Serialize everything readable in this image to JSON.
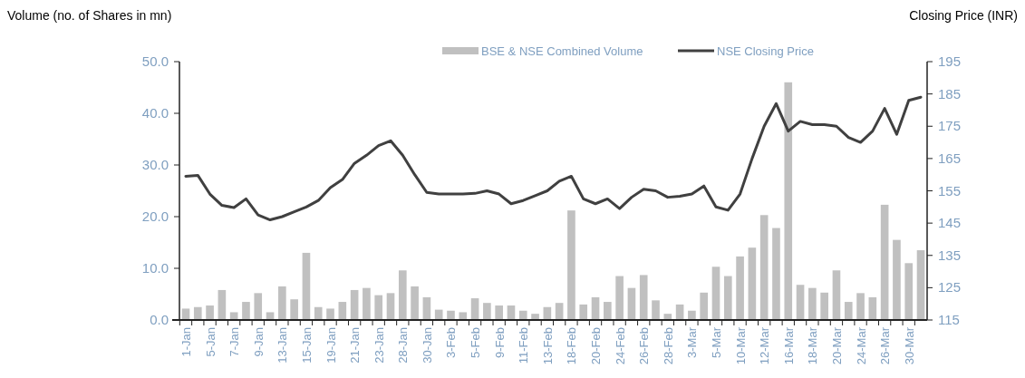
{
  "chart_data": {
    "type": "bar",
    "ylabel": "Volume (no. of Shares in mn)",
    "y2label": "Closing Price (INR)",
    "categories": [
      "1-Jan",
      null,
      "5-Jan",
      null,
      "7-Jan",
      null,
      "9-Jan",
      null,
      "13-Jan",
      null,
      "15-Jan",
      null,
      "19-Jan",
      null,
      "21-Jan",
      null,
      "23-Jan",
      null,
      "28-Jan",
      null,
      "30-Jan",
      null,
      "3-Feb",
      null,
      "5-Feb",
      null,
      "9-Feb",
      null,
      "11-Feb",
      null,
      "13-Feb",
      null,
      "18-Feb",
      null,
      "20-Feb",
      null,
      "24-Feb",
      null,
      "26-Feb",
      null,
      "28-Feb",
      null,
      "3-Mar",
      null,
      "5-Mar",
      null,
      "10-Mar",
      null,
      "12-Mar",
      null,
      "16-Mar",
      null,
      "18-Mar",
      null,
      "20-Mar",
      null,
      "24-Mar",
      null,
      "26-Mar",
      null,
      "30-Mar",
      null
    ],
    "series": [
      {
        "name": "BSE & NSE Combined Volume",
        "color": "#c0c0c0",
        "values": [
          2.2,
          2.5,
          2.8,
          5.8,
          1.5,
          3.5,
          5.2,
          1.5,
          6.5,
          4.0,
          13.0,
          2.5,
          2.2,
          3.5,
          5.8,
          6.2,
          4.8,
          5.2,
          9.6,
          6.5,
          4.4,
          2.0,
          1.8,
          1.5,
          4.2,
          3.3,
          2.8,
          2.8,
          1.8,
          1.2,
          2.5,
          3.3,
          21.2,
          3.0,
          4.4,
          3.5,
          8.5,
          6.2,
          8.7,
          3.8,
          1.2,
          3.0,
          1.8,
          5.3,
          10.3,
          8.5,
          12.3,
          14.0,
          20.3,
          17.8,
          46.0,
          6.8,
          6.2,
          5.3,
          9.6,
          3.5,
          5.2,
          4.4,
          22.3,
          15.5,
          11.0,
          13.5
        ]
      },
      {
        "name": "NSE Closing Price",
        "type": "line",
        "axis": "y2",
        "color": "#404040",
        "values": [
          159.5,
          159.8,
          154,
          150.5,
          149.8,
          152.5,
          147.5,
          146,
          147,
          148.5,
          150,
          152,
          156,
          158.5,
          163.5,
          166,
          169,
          170.5,
          166,
          160,
          154.5,
          154,
          154,
          154,
          154.2,
          155,
          154,
          151,
          152,
          153.5,
          155,
          158,
          159.5,
          152.5,
          151,
          152.5,
          149.5,
          153,
          155.5,
          155,
          153,
          153.3,
          154,
          156.5,
          150,
          149,
          154,
          165,
          175,
          182,
          173.5,
          176.5,
          175.5,
          175.5,
          175,
          171.5,
          170,
          173.5,
          180.5,
          172.5,
          183,
          184
        ]
      }
    ],
    "ylim": [
      0,
      50
    ],
    "yticks": [
      {
        "value": 0,
        "label": "0.0"
      },
      {
        "value": 10,
        "label": "10.0"
      },
      {
        "value": 20,
        "label": "20.0"
      },
      {
        "value": 30,
        "label": "30.0"
      },
      {
        "value": 40,
        "label": "40.0"
      },
      {
        "value": 50,
        "label": "50.0"
      }
    ],
    "y2lim": [
      115,
      195
    ],
    "y2ticks": [
      115,
      125,
      135,
      145,
      155,
      165,
      175,
      185,
      195
    ],
    "legend": "top",
    "grid": false,
    "marker": "none",
    "line_style": "solid"
  }
}
